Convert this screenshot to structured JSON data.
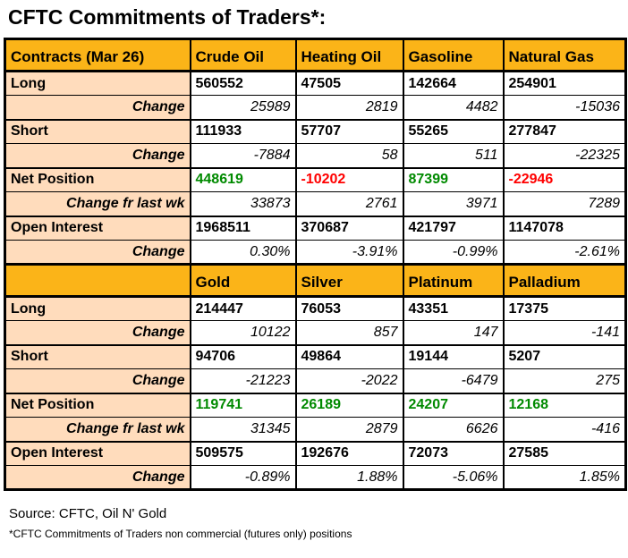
{
  "colors": {
    "header_bg": "#FBAE13",
    "label_bg": "#FFDDBD",
    "positive_value": "#008A00",
    "negative_value": "#FF0000",
    "border": "#000000"
  },
  "footer": {
    "source": "Source: CFTC, Oil N' Gold",
    "footnote": "*CFTC Commitments of Traders non commercial (futures only) positions"
  },
  "chart_data": {
    "type": "table",
    "title": "CFTC Commitments of Traders*:",
    "sections": [
      {
        "header": [
          "Contracts (Mar 26)",
          "Crude Oil",
          "Heating Oil",
          "Gasoline",
          "Natural Gas"
        ],
        "rows": [
          {
            "label": "Long",
            "type": "main",
            "values": [
              "560552",
              "47505",
              "142664",
              "254901"
            ]
          },
          {
            "label": "Change",
            "type": "change",
            "values": [
              "25989",
              "2819",
              "4482",
              "-15036"
            ]
          },
          {
            "label": "Short",
            "type": "main",
            "values": [
              "111933",
              "57707",
              "55265",
              "277847"
            ]
          },
          {
            "label": "Change",
            "type": "change",
            "values": [
              "-7884",
              "58",
              "511",
              "-22325"
            ]
          },
          {
            "label": "Net Position",
            "type": "net",
            "values": [
              "448619",
              "-10202",
              "87399",
              "-22946"
            ]
          },
          {
            "label": "Change fr last wk",
            "type": "change",
            "values": [
              "33873",
              "2761",
              "3971",
              "7289"
            ]
          },
          {
            "label": "Open Interest",
            "type": "main",
            "values": [
              "1968511",
              "370687",
              "421797",
              "1147078"
            ]
          },
          {
            "label": "Change",
            "type": "change",
            "values": [
              "0.30%",
              "-3.91%",
              "-0.99%",
              "-2.61%"
            ]
          }
        ]
      },
      {
        "header": [
          "",
          "Gold",
          "Silver",
          "Platinum",
          "Palladium"
        ],
        "rows": [
          {
            "label": "Long",
            "type": "main",
            "values": [
              "214447",
              "76053",
              "43351",
              "17375"
            ]
          },
          {
            "label": "Change",
            "type": "change",
            "values": [
              "10122",
              "857",
              "147",
              "-141"
            ]
          },
          {
            "label": "Short",
            "type": "main",
            "values": [
              "94706",
              "49864",
              "19144",
              "5207"
            ]
          },
          {
            "label": "Change",
            "type": "change",
            "values": [
              "-21223",
              "-2022",
              "-6479",
              "275"
            ]
          },
          {
            "label": "Net Position",
            "type": "net",
            "values": [
              "119741",
              "26189",
              "24207",
              "12168"
            ]
          },
          {
            "label": "Change fr last wk",
            "type": "change",
            "values": [
              "31345",
              "2879",
              "6626",
              "-416"
            ]
          },
          {
            "label": "Open Interest",
            "type": "main",
            "values": [
              "509575",
              "192676",
              "72073",
              "27585"
            ]
          },
          {
            "label": "Change",
            "type": "change",
            "values": [
              "-0.89%",
              "1.88%",
              "-5.06%",
              "1.85%"
            ]
          }
        ]
      }
    ]
  }
}
